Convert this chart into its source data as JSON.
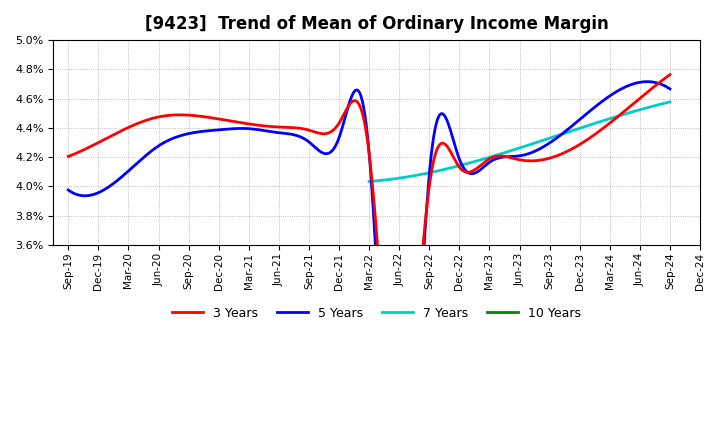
{
  "title": "[9423]  Trend of Mean of Ordinary Income Margin",
  "title_fontsize": 12,
  "background_color": "#ffffff",
  "plot_background": "#ffffff",
  "grid_color": "#aaaaaa",
  "ylim": [
    0.036,
    0.05
  ],
  "yticks": [
    0.036,
    0.038,
    0.04,
    0.042,
    0.044,
    0.046,
    0.048,
    0.05
  ],
  "x_labels": [
    "Sep-19",
    "Dec-19",
    "Mar-20",
    "Jun-20",
    "Sep-20",
    "Dec-20",
    "Mar-21",
    "Jun-21",
    "Sep-21",
    "Dec-21",
    "Mar-22",
    "Jun-22",
    "Sep-22",
    "Dec-22",
    "Mar-23",
    "Jun-23",
    "Sep-23",
    "Dec-23",
    "Mar-24",
    "Jun-24",
    "Sep-24",
    "Dec-24"
  ],
  "series": {
    "3 Years": {
      "color": "#ff0000",
      "data_x": [
        0,
        1,
        2,
        3,
        4,
        5,
        6,
        7,
        8,
        9,
        10,
        11,
        12,
        13,
        14,
        15,
        16,
        17,
        18,
        19,
        20
      ],
      "data_y": [
        0.042,
        0.0432,
        0.0437,
        0.045,
        0.0448,
        0.0446,
        0.0443,
        0.044,
        0.044,
        0.044,
        0.0428,
        0.0215,
        0.0405,
        0.041,
        0.042,
        0.0418,
        0.042,
        0.043,
        0.0438,
        0.0465,
        0.0475
      ]
    },
    "5 Years": {
      "color": "#0000ff",
      "data_x": [
        0,
        1,
        2,
        3,
        4,
        5,
        6,
        7,
        8,
        9,
        10,
        11,
        12,
        13,
        14,
        15,
        16,
        17,
        18,
        19,
        20
      ],
      "data_y": [
        0.0397,
        0.0398,
        0.0407,
        0.043,
        0.0436,
        0.0438,
        0.044,
        0.0436,
        0.0432,
        0.043,
        0.0428,
        0.013,
        0.0413,
        0.0415,
        0.042,
        0.0418,
        0.0428,
        0.045,
        0.0462,
        0.0468,
        0.0468
      ]
    },
    "7 Years": {
      "color": "#00cccc",
      "data_x": [
        10,
        11,
        12,
        13,
        14,
        15,
        16,
        17,
        18,
        19,
        20
      ],
      "data_y": [
        0.0403,
        0.0403,
        0.0414,
        0.0416,
        0.042,
        0.0422,
        0.043,
        0.044,
        0.045,
        0.0455,
        0.0455
      ]
    },
    "10 Years": {
      "color": "#008800",
      "data_x": [],
      "data_y": []
    }
  },
  "linewidth": 2.0
}
